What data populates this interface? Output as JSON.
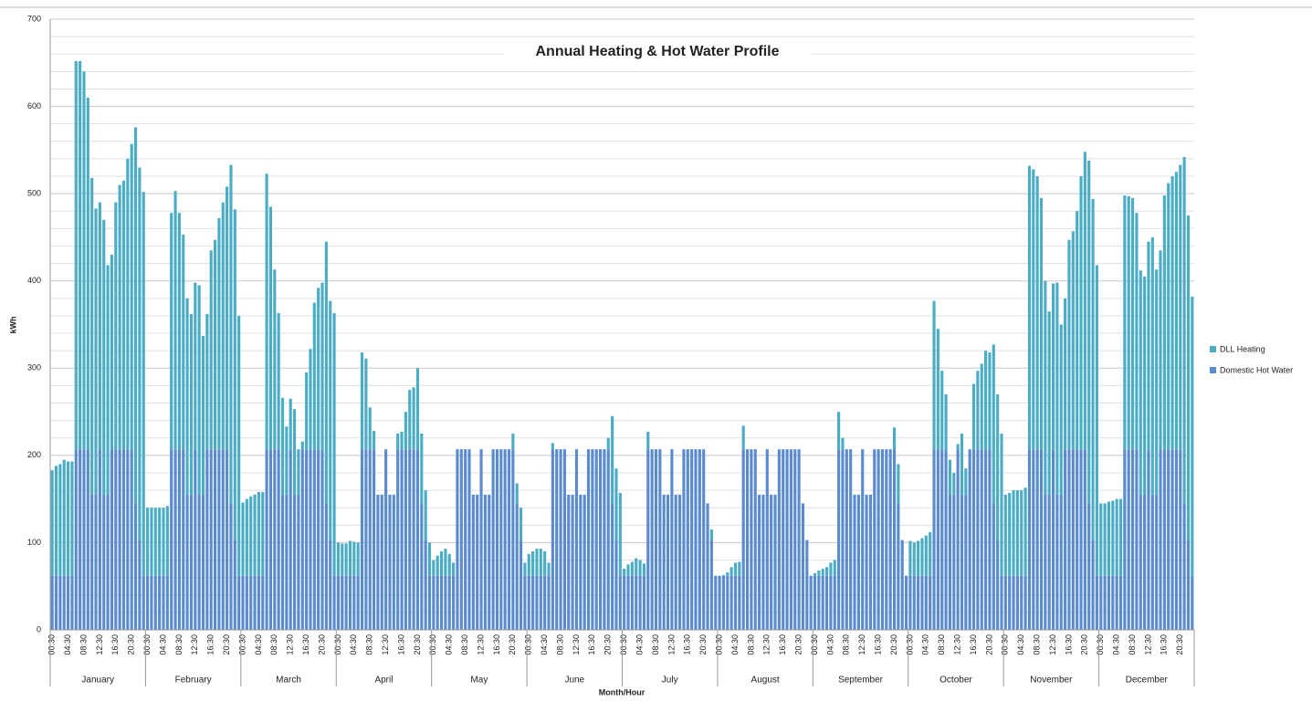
{
  "chart_data": {
    "type": "stacked_bar",
    "title": "Annual Heating & Hot Water Profile",
    "x_label": "Month/Hour",
    "y_label": "kWh",
    "ylim": [
      0,
      700
    ],
    "yticks": [
      0,
      100,
      200,
      300,
      400,
      500,
      600,
      700
    ],
    "minor_yticks": [
      20,
      40,
      60,
      80,
      120,
      140,
      160,
      180,
      220,
      240,
      260,
      280,
      320,
      340,
      360,
      380,
      420,
      440,
      460,
      480,
      520,
      540,
      560,
      580,
      620,
      640,
      660,
      680
    ],
    "grid": true,
    "legend": "right",
    "groups": [
      "January",
      "February",
      "March",
      "April",
      "May",
      "June",
      "July",
      "August",
      "September",
      "October",
      "November",
      "December"
    ],
    "categories": [
      "00:30",
      null,
      null,
      null,
      "04:30",
      null,
      null,
      null,
      "08:30",
      null,
      null,
      null,
      "12:30",
      null,
      null,
      null,
      "16:30",
      null,
      null,
      null,
      "20:30",
      null,
      null,
      null,
      "00:30",
      null,
      null,
      null,
      "04:30",
      null,
      null,
      null,
      "08:30",
      null,
      null,
      null,
      "12:30",
      null,
      null,
      null,
      "16:30",
      null,
      null,
      null,
      "20:30",
      null,
      null,
      null,
      "00:30",
      null,
      null,
      null,
      "04:30",
      null,
      null,
      null,
      "08:30",
      null,
      null,
      null,
      "12:30",
      null,
      null,
      null,
      "16:30",
      null,
      null,
      null,
      "20:30",
      null,
      null,
      null,
      "00:30",
      null,
      null,
      null,
      "04:30",
      null,
      null,
      null,
      "08:30",
      null,
      null,
      null,
      "12:30",
      null,
      null,
      null,
      "16:30",
      null,
      null,
      null,
      "20:30",
      null,
      null,
      null,
      "00:30",
      null,
      null,
      null,
      "04:30",
      null,
      null,
      null,
      "08:30",
      null,
      null,
      null,
      "12:30",
      null,
      null,
      null,
      "16:30",
      null,
      null,
      null,
      "20:30",
      null,
      null,
      null,
      "00:30",
      null,
      null,
      null,
      "04:30",
      null,
      null,
      null,
      "08:30",
      null,
      null,
      null,
      "12:30",
      null,
      null,
      null,
      "16:30",
      null,
      null,
      null,
      "20:30",
      null,
      null,
      null,
      "00:30",
      null,
      null,
      null,
      "04:30",
      null,
      null,
      null,
      "08:30",
      null,
      null,
      null,
      "12:30",
      null,
      null,
      null,
      "16:30",
      null,
      null,
      null,
      "20:30",
      null,
      null,
      null,
      "00:30",
      null,
      null,
      null,
      "04:30",
      null,
      null,
      null,
      "08:30",
      null,
      null,
      null,
      "12:30",
      null,
      null,
      null,
      "16:30",
      null,
      null,
      null,
      "20:30",
      null,
      null,
      null,
      "00:30",
      null,
      null,
      null,
      "04:30",
      null,
      null,
      null,
      "08:30",
      null,
      null,
      null,
      "12:30",
      null,
      null,
      null,
      "16:30",
      null,
      null,
      null,
      "20:30",
      null,
      null,
      null,
      "00:30",
      null,
      null,
      null,
      "04:30",
      null,
      null,
      null,
      "08:30",
      null,
      null,
      null,
      "12:30",
      null,
      null,
      null,
      "16:30",
      null,
      null,
      null,
      "20:30",
      null,
      null,
      null,
      "00:30",
      null,
      null,
      null,
      "04:30",
      null,
      null,
      null,
      "08:30",
      null,
      null,
      null,
      "12:30",
      null,
      null,
      null,
      "16:30",
      null,
      null,
      null,
      "20:30",
      null,
      null,
      null,
      "00:30",
      null,
      null,
      null,
      "04:30",
      null,
      null,
      null,
      "08:30",
      null,
      null,
      null,
      "12:30",
      null,
      null,
      null,
      "16:30",
      null,
      null,
      null,
      "20:30",
      null,
      null,
      null
    ],
    "series": [
      {
        "name": "DLL Heating",
        "color": "#4bacc6",
        "values": [
          121,
          126,
          128,
          133,
          131,
          131,
          445,
          445,
          433,
          403,
          363,
          328,
          283,
          315,
          263,
          223,
          283,
          303,
          308,
          333,
          350,
          431,
          427,
          440,
          78,
          78,
          78,
          78,
          78,
          80,
          271,
          296,
          271,
          246,
          225,
          207,
          191,
          240,
          182,
          155,
          228,
          240,
          265,
          283,
          301,
          388,
          379,
          298,
          84,
          88,
          91,
          93,
          96,
          96,
          316,
          278,
          206,
          156,
          111,
          78,
          58,
          98,
          52,
          9,
          88,
          115,
          168,
          185,
          191,
          300,
          274,
          301,
          38,
          37,
          37,
          40,
          39,
          38,
          111,
          104,
          48,
          21,
          0,
          0,
          0,
          0,
          0,
          18,
          20,
          43,
          68,
          71,
          93,
          80,
          57,
          38,
          18,
          23,
          28,
          31,
          25,
          15,
          0,
          0,
          0,
          0,
          0,
          0,
          0,
          0,
          0,
          0,
          0,
          0,
          0,
          0,
          18,
          23,
          37,
          15,
          25,
          28,
          31,
          31,
          28,
          15,
          7,
          0,
          0,
          0,
          0,
          0,
          0,
          0,
          0,
          0,
          0,
          0,
          0,
          0,
          13,
          100,
          82,
          95,
          8,
          13,
          16,
          20,
          18,
          14,
          20,
          0,
          0,
          0,
          0,
          0,
          0,
          0,
          0,
          0,
          0,
          0,
          0,
          0,
          0,
          0,
          12,
          0,
          0,
          1,
          4,
          10,
          15,
          16,
          27,
          0,
          0,
          0,
          0,
          0,
          0,
          0,
          0,
          0,
          0,
          0,
          0,
          0,
          0,
          0,
          0,
          0,
          3,
          6,
          8,
          10,
          15,
          18,
          43,
          13,
          0,
          0,
          0,
          0,
          0,
          0,
          0,
          0,
          0,
          0,
          0,
          0,
          25,
          45,
          0,
          0,
          40,
          38,
          40,
          43,
          46,
          50,
          170,
          138,
          90,
          63,
          40,
          25,
          6,
          70,
          30,
          0,
          75,
          90,
          98,
          113,
          111,
          182,
          167,
          163,
          93,
          95,
          98,
          98,
          98,
          101,
          325,
          321,
          313,
          288,
          245,
          210,
          190,
          243,
          195,
          173,
          240,
          250,
          273,
          313,
          341,
          393,
          391,
          356,
          83,
          83,
          85,
          86,
          88,
          88,
          291,
          290,
          288,
          271,
          257,
          250,
          238,
          295,
          258,
          228,
          291,
          305,
          313,
          318,
          326,
          397,
          372,
          320
        ]
      },
      {
        "name": "Domestic Hot Water",
        "color": "#5b8bcf",
        "values": [
          62,
          62,
          62,
          62,
          62,
          62,
          207,
          207,
          207,
          207,
          155,
          155,
          207,
          155,
          155,
          207,
          207,
          207,
          207,
          207,
          207,
          145,
          103,
          62,
          62,
          62,
          62,
          62,
          62,
          62,
          207,
          207,
          207,
          207,
          155,
          155,
          207,
          155,
          155,
          207,
          207,
          207,
          207,
          207,
          207,
          145,
          103,
          62,
          62,
          62,
          62,
          62,
          62,
          62,
          207,
          207,
          207,
          207,
          155,
          155,
          207,
          155,
          155,
          207,
          207,
          207,
          207,
          207,
          207,
          145,
          103,
          62,
          62,
          62,
          62,
          62,
          62,
          62,
          207,
          207,
          207,
          207,
          155,
          155,
          207,
          155,
          155,
          207,
          207,
          207,
          207,
          207,
          207,
          145,
          103,
          62,
          62,
          62,
          62,
          62,
          62,
          62,
          207,
          207,
          207,
          207,
          155,
          155,
          207,
          155,
          155,
          207,
          207,
          207,
          207,
          207,
          207,
          145,
          103,
          62,
          62,
          62,
          62,
          62,
          62,
          62,
          207,
          207,
          207,
          207,
          155,
          155,
          207,
          155,
          155,
          207,
          207,
          207,
          207,
          207,
          207,
          145,
          103,
          62,
          62,
          62,
          62,
          62,
          62,
          62,
          207,
          207,
          207,
          207,
          155,
          155,
          207,
          155,
          155,
          207,
          207,
          207,
          207,
          207,
          207,
          145,
          103,
          62,
          62,
          62,
          62,
          62,
          62,
          62,
          207,
          207,
          207,
          207,
          155,
          155,
          207,
          155,
          155,
          207,
          207,
          207,
          207,
          207,
          207,
          145,
          103,
          62,
          62,
          62,
          62,
          62,
          62,
          62,
          207,
          207,
          207,
          207,
          155,
          155,
          207,
          155,
          155,
          207,
          207,
          207,
          207,
          207,
          207,
          145,
          103,
          62,
          62,
          62,
          62,
          62,
          62,
          62,
          207,
          207,
          207,
          207,
          155,
          155,
          207,
          155,
          155,
          207,
          207,
          207,
          207,
          207,
          207,
          145,
          103,
          62,
          62,
          62,
          62,
          62,
          62,
          62,
          207,
          207,
          207,
          207,
          155,
          155,
          207,
          155,
          155,
          207,
          207,
          207,
          207,
          207,
          207,
          145,
          103,
          62,
          62,
          62,
          62,
          62,
          62,
          62,
          207,
          207,
          207,
          207,
          155,
          155,
          207,
          155,
          155,
          207,
          207,
          207,
          207,
          207,
          207,
          145,
          103,
          62
        ]
      }
    ]
  }
}
